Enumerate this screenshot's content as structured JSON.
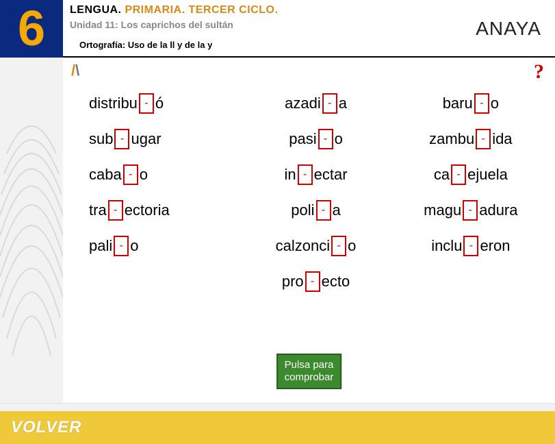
{
  "header": {
    "grade": "6",
    "subject_black": "LENGUA. ",
    "subject_orange": "PRIMARIA. TERCER CICLO.",
    "unit": "Unidad 11: Los caprichos del sultán",
    "topic": "Ortografía: Uso de la ll y de la y",
    "brand": "ANAYA"
  },
  "colors": {
    "grade_bg": "#0a2a80",
    "grade_fg": "#f5a800",
    "accent_orange": "#d78a1a",
    "blank_border": "#cc0000",
    "check_bg": "#3c8a2e",
    "bottom_bg": "#f0c93a"
  },
  "icons": {
    "help": "?",
    "mini_logo_left": "/",
    "mini_logo_right": "\\"
  },
  "exercise": {
    "blank_char": "-",
    "rows": [
      [
        {
          "pre": "distribu",
          "post": "ó"
        },
        {
          "pre": "azadi",
          "post": "a"
        },
        {
          "pre": "baru",
          "post": "o"
        }
      ],
      [
        {
          "pre": "sub",
          "post": "ugar"
        },
        {
          "pre": "pasi",
          "post": "o"
        },
        {
          "pre": "zambu",
          "post": "ida"
        }
      ],
      [
        {
          "pre": "caba",
          "post": "o"
        },
        {
          "pre": "in",
          "post": "ectar"
        },
        {
          "pre": "ca",
          "post": "ejuela"
        }
      ],
      [
        {
          "pre": "tra",
          "post": "ectoria"
        },
        {
          "pre": "poli",
          "post": "a"
        },
        {
          "pre": "magu",
          "post": "adura"
        }
      ],
      [
        {
          "pre": "pali",
          "post": "o"
        },
        {
          "pre": "calzonci",
          "post": "o"
        },
        {
          "pre": "inclu",
          "post": "eron"
        }
      ],
      [
        null,
        {
          "pre": "pro",
          "post": "ecto"
        },
        null
      ]
    ],
    "check_label": "Pulsa para\ncomprobar"
  },
  "footer": {
    "back_label": "VOLVER"
  }
}
